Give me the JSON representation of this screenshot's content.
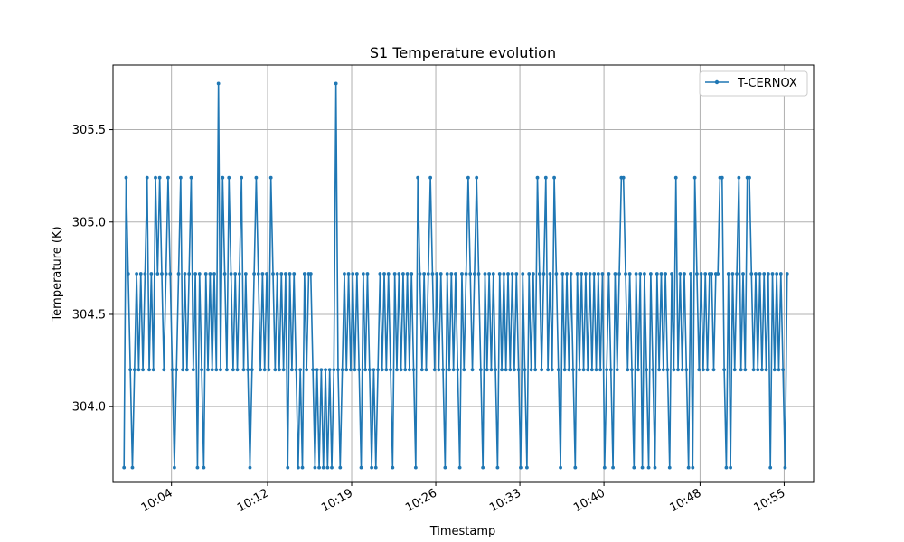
{
  "chart_data": {
    "type": "line",
    "title": "S1 Temperature evolution",
    "xlabel": "Timestamp",
    "ylabel": "Temperature (K)",
    "x_tick_labels": [
      "10:04",
      "10:12",
      "10:19",
      "10:26",
      "10:33",
      "10:40",
      "10:48",
      "10:55"
    ],
    "y_ticks": [
      304.0,
      304.5,
      305.0,
      305.5
    ],
    "y_tick_labels": [
      "304.0",
      "304.5",
      "305.0",
      "305.5"
    ],
    "ylim": [
      303.59,
      305.85
    ],
    "x_range": [
      "09:59:08",
      "10:57:27"
    ],
    "grid": true,
    "legend_position": "upper-right",
    "series": [
      {
        "name": "T-CERNOX",
        "color": "#1f77b4",
        "marker": "circle",
        "x_start": "10:00:03",
        "x_end": "10:55:15",
        "values": [
          303.67,
          305.24,
          304.72,
          304.2,
          303.67,
          304.2,
          304.72,
          304.2,
          304.72,
          304.2,
          304.72,
          305.24,
          304.2,
          304.72,
          304.2,
          305.24,
          304.72,
          305.24,
          304.72,
          304.2,
          304.72,
          305.24,
          304.72,
          304.2,
          303.67,
          304.2,
          304.72,
          305.24,
          304.2,
          304.72,
          304.2,
          304.72,
          305.24,
          304.2,
          304.72,
          303.67,
          304.72,
          304.2,
          303.67,
          304.72,
          304.2,
          304.72,
          304.2,
          304.72,
          304.2,
          305.75,
          304.2,
          305.24,
          304.72,
          304.2,
          305.24,
          304.72,
          304.2,
          304.72,
          304.2,
          304.72,
          305.24,
          304.2,
          304.72,
          304.2,
          303.67,
          304.2,
          304.72,
          305.24,
          304.72,
          304.2,
          304.72,
          304.2,
          304.72,
          304.2,
          305.24,
          304.72,
          304.2,
          304.72,
          304.2,
          304.72,
          304.2,
          304.72,
          303.67,
          304.72,
          304.2,
          304.72,
          304.2,
          303.67,
          304.2,
          303.67,
          304.72,
          304.2,
          304.72,
          304.72,
          304.2,
          303.67,
          304.2,
          303.67,
          304.2,
          303.67,
          304.2,
          303.67,
          304.2,
          303.67,
          304.2,
          305.75,
          304.2,
          303.67,
          304.2,
          304.72,
          304.2,
          304.72,
          304.2,
          304.72,
          304.2,
          304.72,
          304.2,
          303.67,
          304.72,
          304.2,
          304.72,
          304.2,
          303.67,
          304.2,
          303.67,
          304.2,
          304.72,
          304.2,
          304.72,
          304.2,
          304.72,
          304.2,
          303.67,
          304.72,
          304.2,
          304.72,
          304.2,
          304.72,
          304.2,
          304.72,
          304.2,
          304.72,
          304.2,
          303.67,
          305.24,
          304.72,
          304.2,
          304.72,
          304.2,
          304.72,
          305.24,
          304.72,
          304.2,
          304.72,
          304.2,
          304.72,
          304.2,
          303.67,
          304.72,
          304.2,
          304.72,
          304.2,
          304.72,
          304.2,
          303.67,
          304.72,
          304.2,
          304.72,
          305.24,
          304.72,
          304.2,
          304.72,
          305.24,
          304.72,
          304.2,
          303.67,
          304.72,
          304.2,
          304.72,
          304.2,
          304.72,
          304.2,
          303.67,
          304.72,
          304.2,
          304.72,
          304.2,
          304.72,
          304.2,
          304.72,
          304.2,
          304.72,
          304.2,
          303.67,
          304.72,
          304.2,
          303.67,
          304.72,
          304.2,
          304.72,
          304.2,
          305.24,
          304.72,
          304.2,
          304.72,
          305.24,
          304.2,
          304.72,
          304.2,
          305.24,
          304.72,
          304.2,
          303.67,
          304.72,
          304.2,
          304.72,
          304.2,
          304.72,
          304.2,
          303.67,
          304.72,
          304.2,
          304.72,
          304.2,
          304.72,
          304.2,
          304.72,
          304.2,
          304.72,
          304.2,
          304.72,
          304.2,
          304.72,
          303.67,
          304.2,
          304.72,
          304.2,
          303.67,
          304.72,
          304.2,
          304.72,
          305.24,
          305.24,
          304.72,
          304.2,
          304.72,
          304.2,
          303.67,
          304.72,
          304.2,
          304.72,
          303.67,
          304.72,
          304.2,
          303.67,
          304.72,
          304.2,
          303.67,
          304.72,
          304.2,
          304.72,
          304.2,
          304.72,
          304.2,
          303.67,
          304.72,
          304.2,
          305.24,
          304.2,
          304.72,
          304.2,
          304.72,
          304.2,
          303.67,
          304.72,
          303.67,
          305.24,
          304.72,
          304.2,
          304.72,
          304.2,
          304.72,
          304.2,
          304.72,
          304.72,
          304.2,
          304.72,
          304.72,
          305.24,
          305.24,
          304.2,
          303.67,
          304.72,
          303.67,
          304.72,
          304.2,
          304.72,
          305.24,
          304.2,
          304.72,
          304.2,
          305.24,
          305.24,
          304.72,
          304.2,
          304.72,
          304.2,
          304.72,
          304.2,
          304.72,
          304.2,
          304.72,
          303.67,
          304.72,
          304.2,
          304.72,
          304.2,
          304.72,
          304.2,
          303.67,
          304.72
        ]
      }
    ]
  }
}
